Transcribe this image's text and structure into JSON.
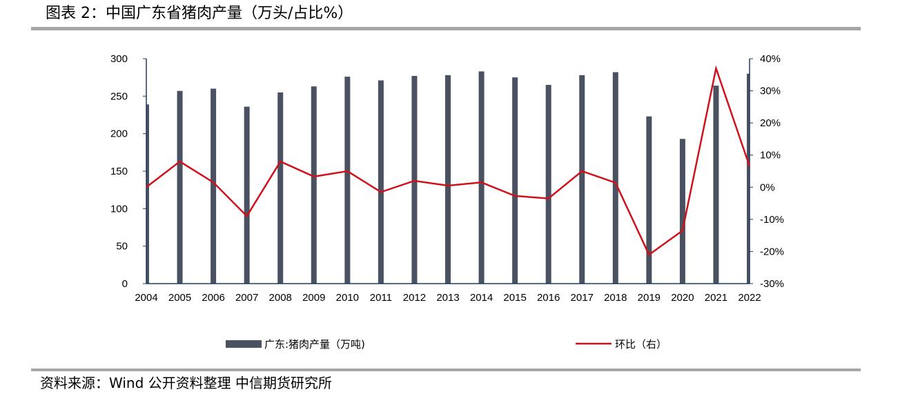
{
  "title": "图表 2：中国广东省猪肉产量（万头/占比%）",
  "source": "资料来源：Wind 公开资料整理 中信期货研究所",
  "chart_data": {
    "type": "bar",
    "categories": [
      "2004",
      "2005",
      "2006",
      "2007",
      "2008",
      "2009",
      "2010",
      "2011",
      "2012",
      "2013",
      "2014",
      "2015",
      "2016",
      "2017",
      "2018",
      "2019",
      "2020",
      "2021",
      "2022"
    ],
    "series": [
      {
        "name": "广东:猪肉产量（万吨)",
        "type": "bar",
        "axis": "left",
        "color": "#4a5261",
        "values": [
          239,
          257,
          260,
          236,
          255,
          263,
          276,
          271,
          277,
          278,
          283,
          275,
          265,
          278,
          282,
          223,
          193,
          264,
          280
        ]
      },
      {
        "name": "环比（右）",
        "type": "line",
        "axis": "right",
        "color": "#d0111b",
        "values": [
          0.0,
          8.0,
          1.5,
          -9.0,
          8.0,
          3.3,
          5.0,
          -1.5,
          2.0,
          0.5,
          1.5,
          -2.7,
          -3.5,
          5.0,
          1.4,
          -21.0,
          -13.5,
          37.0,
          6.5
        ]
      }
    ],
    "y_left": {
      "min": 0,
      "max": 300,
      "ticks": [
        0,
        50,
        100,
        150,
        200,
        250,
        300
      ],
      "tick_labels": [
        "0",
        "50",
        "100",
        "150",
        "200",
        "250",
        "300"
      ]
    },
    "y_right": {
      "min": -30,
      "max": 40,
      "ticks": [
        -30,
        -20,
        -10,
        0,
        10,
        20,
        30,
        40
      ],
      "tick_labels": [
        "-30%",
        "-20%",
        "-10%",
        "0%",
        "10%",
        "20%",
        "30%",
        "40%"
      ]
    },
    "legend": {
      "position": "bottom",
      "items": [
        {
          "label": "广东:猪肉产量（万吨)",
          "kind": "bar"
        },
        {
          "label": "环比（右）",
          "kind": "line"
        }
      ]
    },
    "grid": false
  }
}
